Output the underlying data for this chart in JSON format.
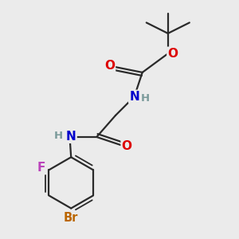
{
  "background_color": "#ebebeb",
  "bond_color": "#2a2a2a",
  "bond_width": 1.6,
  "atom_colors": {
    "O": "#dd0000",
    "N": "#0000cc",
    "F": "#bb44bb",
    "Br": "#bb6600",
    "H_label": "#7a9a9a",
    "C": "#2a2a2a"
  },
  "font_size_atoms": 11,
  "font_size_small": 9.5,
  "font_size_br": 10.5
}
